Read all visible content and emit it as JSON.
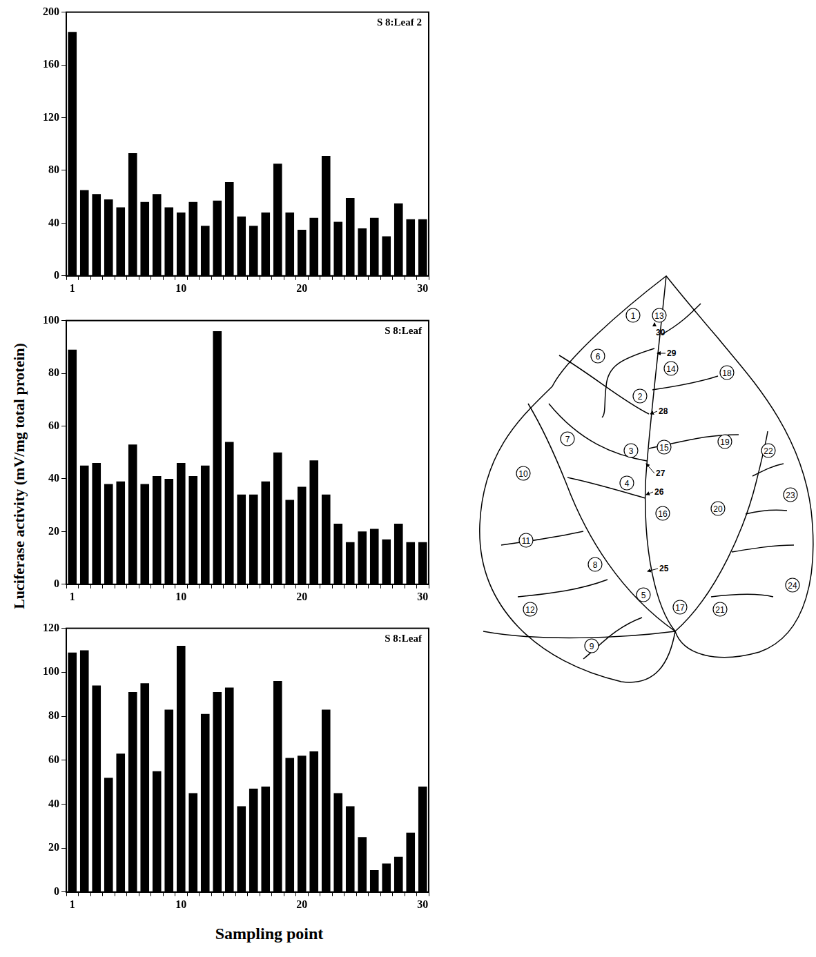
{
  "chart_data": [
    {
      "type": "bar",
      "title": "S 8:Leaf 2",
      "categories": [
        1,
        null,
        null,
        null,
        null,
        null,
        null,
        null,
        null,
        10,
        null,
        null,
        null,
        null,
        null,
        null,
        null,
        null,
        null,
        20,
        null,
        null,
        null,
        null,
        null,
        null,
        null,
        null,
        null,
        30
      ],
      "values": [
        185,
        65,
        62,
        58,
        52,
        93,
        56,
        62,
        52,
        48,
        56,
        38,
        57,
        71,
        45,
        38,
        48,
        85,
        48,
        35,
        44,
        91,
        41,
        59,
        36,
        44,
        30,
        55,
        43,
        43
      ],
      "color": "#000000",
      "ylim": [
        0,
        200
      ],
      "yticks": [
        0,
        40,
        80,
        120,
        160,
        200
      ],
      "grid": false
    },
    {
      "type": "bar",
      "title": "S 8:Leaf",
      "categories": [
        1,
        null,
        null,
        null,
        null,
        null,
        null,
        null,
        null,
        10,
        null,
        null,
        null,
        null,
        null,
        null,
        null,
        null,
        null,
        20,
        null,
        null,
        null,
        null,
        null,
        null,
        null,
        null,
        null,
        30
      ],
      "values": [
        89,
        45,
        46,
        38,
        39,
        53,
        38,
        41,
        40,
        46,
        41,
        45,
        96,
        54,
        34,
        34,
        39,
        50,
        32,
        37,
        47,
        34,
        23,
        16,
        20,
        21,
        17,
        23,
        16,
        16
      ],
      "color": "#000000",
      "ylim": [
        0,
        100
      ],
      "yticks": [
        0,
        20,
        40,
        60,
        80,
        100
      ],
      "grid": false
    },
    {
      "type": "bar",
      "title": "S 8:Leaf",
      "categories": [
        1,
        null,
        null,
        null,
        null,
        null,
        null,
        null,
        null,
        10,
        null,
        null,
        null,
        null,
        null,
        null,
        null,
        null,
        null,
        20,
        null,
        null,
        null,
        null,
        null,
        null,
        null,
        null,
        null,
        30
      ],
      "values": [
        109,
        110,
        94,
        52,
        63,
        91,
        95,
        55,
        83,
        112,
        45,
        81,
        91,
        93,
        39,
        47,
        48,
        96,
        61,
        62,
        64,
        83,
        45,
        39,
        25,
        10,
        13,
        16,
        27,
        48
      ],
      "color": "#000000",
      "ylim": [
        0,
        120
      ],
      "yticks": [
        0,
        20,
        40,
        60,
        80,
        100,
        120
      ],
      "grid": false
    }
  ],
  "y_label": "Luciferase activity (mV/mg total protein)",
  "x_label": "Sampling point",
  "diagram": {
    "circled_labels": [
      1,
      2,
      3,
      4,
      5,
      6,
      7,
      8,
      9,
      10,
      11,
      12,
      13,
      14,
      15,
      16,
      17,
      18,
      19,
      20,
      21,
      22,
      23,
      24
    ],
    "arrow_labels": [
      25,
      26,
      27,
      28,
      29,
      30
    ]
  }
}
